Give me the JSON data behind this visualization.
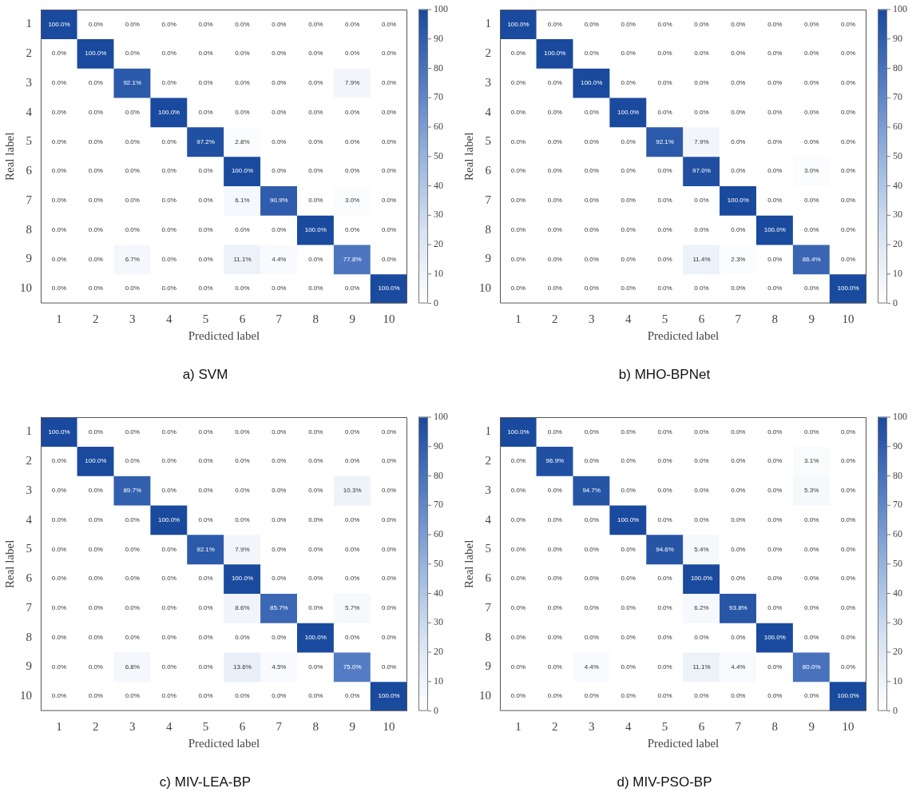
{
  "chart_data": [
    {
      "type": "heatmap",
      "title": "a) SVM",
      "xlabel": "Predicted label",
      "ylabel": "Real label",
      "categories": [
        "1",
        "2",
        "3",
        "4",
        "5",
        "6",
        "7",
        "8",
        "9",
        "10"
      ],
      "y_categories": [
        "1",
        "2",
        "3",
        "4",
        "5",
        "6",
        "7",
        "8",
        "9",
        "10"
      ],
      "clim": [
        0,
        100
      ],
      "cticks": [
        0,
        10,
        20,
        30,
        40,
        50,
        60,
        70,
        80,
        90,
        100
      ],
      "cells": [
        [
          100,
          0,
          0,
          0,
          0,
          0,
          0,
          0,
          0,
          0
        ],
        [
          0,
          100,
          0,
          0,
          0,
          0,
          0,
          0,
          0,
          0
        ],
        [
          0,
          0,
          92.1,
          0,
          0,
          0,
          0,
          0,
          7.9,
          0
        ],
        [
          0,
          0,
          0,
          100,
          0,
          0,
          0,
          0,
          0,
          0
        ],
        [
          0,
          0,
          0,
          0,
          97.2,
          2.8,
          0,
          0,
          0,
          0
        ],
        [
          0,
          0,
          0,
          0,
          0,
          100,
          0,
          0,
          0,
          0
        ],
        [
          0,
          0,
          0,
          0,
          0,
          6.1,
          90.9,
          0,
          3.0,
          0
        ],
        [
          0,
          0,
          0,
          0,
          0,
          0,
          0,
          100,
          0,
          0
        ],
        [
          0,
          0,
          6.7,
          0,
          0,
          11.1,
          4.4,
          0,
          77.8,
          0
        ],
        [
          0,
          0,
          0,
          0,
          0,
          0,
          0,
          0,
          0,
          100
        ]
      ],
      "cell_labels": [
        [
          "100.0%",
          "0.0%",
          "0.0%",
          "0.0%",
          "0.0%",
          "0.0%",
          "0.0%",
          "0.0%",
          "0.0%",
          "0.0%"
        ],
        [
          "0.0%",
          "100.0%",
          "0.0%",
          "0.0%",
          "0.0%",
          "0.0%",
          "0.0%",
          "0.0%",
          "0.0%",
          "0.0%"
        ],
        [
          "0.0%",
          "0.0%",
          "92.1%",
          "0.0%",
          "0.0%",
          "0.0%",
          "0.0%",
          "0.0%",
          "7.9%",
          "0.0%"
        ],
        [
          "0.0%",
          "0.0%",
          "0.0%",
          "100.0%",
          "0.0%",
          "0.0%",
          "0.0%",
          "0.0%",
          "0.0%",
          "0.0%"
        ],
        [
          "0.0%",
          "0.0%",
          "0.0%",
          "0.0%",
          "97.2%",
          "2.8%",
          "0.0%",
          "0.0%",
          "0.0%",
          "0.0%"
        ],
        [
          "0.0%",
          "0.0%",
          "0.0%",
          "0.0%",
          "0.0%",
          "100.0%",
          "0.0%",
          "0.0%",
          "0.0%",
          "0.0%"
        ],
        [
          "0.0%",
          "0.0%",
          "0.0%",
          "0.0%",
          "0.0%",
          "6.1%",
          "90.9%",
          "0.0%",
          "3.0%",
          "0.0%"
        ],
        [
          "0.0%",
          "0.0%",
          "0.0%",
          "0.0%",
          "0.0%",
          "0.0%",
          "0.0%",
          "100.0%",
          "0.0%",
          "0.0%"
        ],
        [
          "0.0%",
          "0.0%",
          "6.7%",
          "0.0%",
          "0.0%",
          "11.1%",
          "4.4%",
          "0.0%",
          "77.8%",
          "0.0%"
        ],
        [
          "0.0%",
          "0.0%",
          "0.0%",
          "0.0%",
          "0.0%",
          "0.0%",
          "0.0%",
          "0.0%",
          "0.0%",
          "100.0%"
        ]
      ]
    },
    {
      "type": "heatmap",
      "title": "b) MHO-BPNet",
      "xlabel": "Predicted label",
      "ylabel": "Real label",
      "categories": [
        "1",
        "2",
        "3",
        "4",
        "5",
        "6",
        "7",
        "8",
        "9",
        "10"
      ],
      "y_categories": [
        "1",
        "2",
        "3",
        "4",
        "5",
        "6",
        "7",
        "8",
        "9",
        "10"
      ],
      "clim": [
        0,
        100
      ],
      "cticks": [
        0,
        10,
        20,
        30,
        40,
        50,
        60,
        70,
        80,
        90,
        100
      ],
      "cells": [
        [
          100,
          0,
          0,
          0,
          0,
          0,
          0,
          0,
          0,
          0
        ],
        [
          0,
          100,
          0,
          0,
          0,
          0,
          0,
          0,
          0,
          0
        ],
        [
          0,
          0,
          100,
          0,
          0,
          0,
          0,
          0,
          0,
          0
        ],
        [
          0,
          0,
          0,
          100,
          0,
          0,
          0,
          0,
          0,
          0
        ],
        [
          0,
          0,
          0,
          0,
          92.1,
          7.9,
          0,
          0,
          0,
          0
        ],
        [
          0,
          0,
          0,
          0,
          0,
          97.0,
          0,
          0,
          3.0,
          0
        ],
        [
          0,
          0,
          0,
          0,
          0,
          0,
          100,
          0,
          0,
          0
        ],
        [
          0,
          0,
          0,
          0,
          0,
          0,
          0,
          100,
          0,
          0
        ],
        [
          0,
          0,
          0,
          0,
          0,
          11.4,
          2.3,
          0,
          86.4,
          0
        ],
        [
          0,
          0,
          0,
          0,
          0,
          0,
          0,
          0,
          0,
          100
        ]
      ],
      "cell_labels": [
        [
          "100.0%",
          "0.0%",
          "0.0%",
          "0.0%",
          "0.0%",
          "0.0%",
          "0.0%",
          "0.0%",
          "0.0%",
          "0.0%"
        ],
        [
          "0.0%",
          "100.0%",
          "0.0%",
          "0.0%",
          "0.0%",
          "0.0%",
          "0.0%",
          "0.0%",
          "0.0%",
          "0.0%"
        ],
        [
          "0.0%",
          "0.0%",
          "100.0%",
          "0.0%",
          "0.0%",
          "0.0%",
          "0.0%",
          "0.0%",
          "0.0%",
          "0.0%"
        ],
        [
          "0.0%",
          "0.0%",
          "0.0%",
          "100.0%",
          "0.0%",
          "0.0%",
          "0.0%",
          "0.0%",
          "0.0%",
          "0.0%"
        ],
        [
          "0.0%",
          "0.0%",
          "0.0%",
          "0.0%",
          "92.1%",
          "7.9%",
          "0.0%",
          "0.0%",
          "0.0%",
          "0.0%"
        ],
        [
          "0.0%",
          "0.0%",
          "0.0%",
          "0.0%",
          "0.0%",
          "97.0%",
          "0.0%",
          "0.0%",
          "3.0%",
          "0.0%"
        ],
        [
          "0.0%",
          "0.0%",
          "0.0%",
          "0.0%",
          "0.0%",
          "0.0%",
          "100.0%",
          "0.0%",
          "0.0%",
          "0.0%"
        ],
        [
          "0.0%",
          "0.0%",
          "0.0%",
          "0.0%",
          "0.0%",
          "0.0%",
          "0.0%",
          "100.0%",
          "0.0%",
          "0.0%"
        ],
        [
          "0.0%",
          "0.0%",
          "0.0%",
          "0.0%",
          "0.0%",
          "11.4%",
          "2.3%",
          "0.0%",
          "86.4%",
          "0.0%"
        ],
        [
          "0.0%",
          "0.0%",
          "0.0%",
          "0.0%",
          "0.0%",
          "0.0%",
          "0.0%",
          "0.0%",
          "0.0%",
          "100.0%"
        ]
      ]
    },
    {
      "type": "heatmap",
      "title": "c) MIV-LEA-BP",
      "xlabel": "Predicted label",
      "ylabel": "Real label",
      "categories": [
        "1",
        "2",
        "3",
        "4",
        "5",
        "6",
        "7",
        "8",
        "9",
        "10"
      ],
      "y_categories": [
        "1",
        "2",
        "3",
        "4",
        "5",
        "6",
        "7",
        "8",
        "9",
        "10"
      ],
      "clim": [
        0,
        100
      ],
      "cticks": [
        0,
        10,
        20,
        30,
        40,
        50,
        60,
        70,
        80,
        90,
        100
      ],
      "cells": [
        [
          100,
          0,
          0,
          0,
          0,
          0,
          0,
          0,
          0,
          0
        ],
        [
          0,
          100,
          0,
          0,
          0,
          0,
          0,
          0,
          0,
          0
        ],
        [
          0,
          0,
          89.7,
          0,
          0,
          0,
          0,
          0,
          10.3,
          0
        ],
        [
          0,
          0,
          0,
          100,
          0,
          0,
          0,
          0,
          0,
          0
        ],
        [
          0,
          0,
          0,
          0,
          92.1,
          7.9,
          0,
          0,
          0,
          0
        ],
        [
          0,
          0,
          0,
          0,
          0,
          100,
          0,
          0,
          0,
          0
        ],
        [
          0,
          0,
          0,
          0,
          0,
          8.6,
          85.7,
          0,
          5.7,
          0
        ],
        [
          0,
          0,
          0,
          0,
          0,
          0,
          0,
          100,
          0,
          0
        ],
        [
          0,
          0,
          6.8,
          0,
          0,
          13.6,
          4.5,
          0,
          75.0,
          0
        ],
        [
          0,
          0,
          0,
          0,
          0,
          0,
          0,
          0,
          0,
          100
        ]
      ],
      "cell_labels": [
        [
          "100.0%",
          "0.0%",
          "0.0%",
          "0.0%",
          "0.0%",
          "0.0%",
          "0.0%",
          "0.0%",
          "0.0%",
          "0.0%"
        ],
        [
          "0.0%",
          "100.0%",
          "0.0%",
          "0.0%",
          "0.0%",
          "0.0%",
          "0.0%",
          "0.0%",
          "0.0%",
          "0.0%"
        ],
        [
          "0.0%",
          "0.0%",
          "89.7%",
          "0.0%",
          "0.0%",
          "0.0%",
          "0.0%",
          "0.0%",
          "10.3%",
          "0.0%"
        ],
        [
          "0.0%",
          "0.0%",
          "0.0%",
          "100.0%",
          "0.0%",
          "0.0%",
          "0.0%",
          "0.0%",
          "0.0%",
          "0.0%"
        ],
        [
          "0.0%",
          "0.0%",
          "0.0%",
          "0.0%",
          "92.1%",
          "7.9%",
          "0.0%",
          "0.0%",
          "0.0%",
          "0.0%"
        ],
        [
          "0.0%",
          "0.0%",
          "0.0%",
          "0.0%",
          "0.0%",
          "100.0%",
          "0.0%",
          "0.0%",
          "0.0%",
          "0.0%"
        ],
        [
          "0.0%",
          "0.0%",
          "0.0%",
          "0.0%",
          "0.0%",
          "8.6%",
          "85.7%",
          "0.0%",
          "5.7%",
          "0.0%"
        ],
        [
          "0.0%",
          "0.0%",
          "0.0%",
          "0.0%",
          "0.0%",
          "0.0%",
          "0.0%",
          "100.0%",
          "0.0%",
          "0.0%"
        ],
        [
          "0.0%",
          "0.0%",
          "6.8%",
          "0.0%",
          "0.0%",
          "13.6%",
          "4.5%",
          "0.0%",
          "75.0%",
          "0.0%"
        ],
        [
          "0.0%",
          "0.0%",
          "0.0%",
          "0.0%",
          "0.0%",
          "0.0%",
          "0.0%",
          "0.0%",
          "0.0%",
          "100.0%"
        ]
      ]
    },
    {
      "type": "heatmap",
      "title": "d) MIV-PSO-BP",
      "xlabel": "Predicted label",
      "ylabel": "Real label",
      "categories": [
        "1",
        "2",
        "3",
        "4",
        "5",
        "6",
        "7",
        "8",
        "9",
        "10"
      ],
      "y_categories": [
        "1",
        "2",
        "3",
        "4",
        "5",
        "6",
        "7",
        "8",
        "9",
        "10"
      ],
      "clim": [
        0,
        100
      ],
      "cticks": [
        0,
        10,
        20,
        30,
        40,
        50,
        60,
        70,
        80,
        90,
        100
      ],
      "cells": [
        [
          100,
          0,
          0,
          0,
          0,
          0,
          0,
          0,
          0,
          0
        ],
        [
          0,
          96.9,
          0,
          0,
          0,
          0,
          0,
          0,
          3.1,
          0
        ],
        [
          0,
          0,
          94.7,
          0,
          0,
          0,
          0,
          0,
          5.3,
          0
        ],
        [
          0,
          0,
          0,
          100,
          0,
          0,
          0,
          0,
          0,
          0
        ],
        [
          0,
          0,
          0,
          0,
          94.6,
          5.4,
          0,
          0,
          0,
          0
        ],
        [
          0,
          0,
          0,
          0,
          0,
          100,
          0,
          0,
          0,
          0
        ],
        [
          0,
          0,
          0,
          0,
          0,
          6.2,
          93.8,
          0,
          0,
          0
        ],
        [
          0,
          0,
          0,
          0,
          0,
          0,
          0,
          100,
          0,
          0
        ],
        [
          0,
          0,
          4.4,
          0,
          0,
          11.1,
          4.4,
          0,
          80.0,
          0
        ],
        [
          0,
          0,
          0,
          0,
          0,
          0,
          0,
          0,
          0,
          100
        ]
      ],
      "cell_labels": [
        [
          "100.0%",
          "0.0%",
          "0.0%",
          "0.0%",
          "0.0%",
          "0.0%",
          "0.0%",
          "0.0%",
          "0.0%",
          "0.0%"
        ],
        [
          "0.0%",
          "96.9%",
          "0.0%",
          "0.0%",
          "0.0%",
          "0.0%",
          "0.0%",
          "0.0%",
          "3.1%",
          "0.0%"
        ],
        [
          "0.0%",
          "0.0%",
          "94.7%",
          "0.0%",
          "0.0%",
          "0.0%",
          "0.0%",
          "0.0%",
          "5.3%",
          "0.0%"
        ],
        [
          "0.0%",
          "0.0%",
          "0.0%",
          "100.0%",
          "0.0%",
          "0.0%",
          "0.0%",
          "0.0%",
          "0.0%",
          "0.0%"
        ],
        [
          "0.0%",
          "0.0%",
          "0.0%",
          "0.0%",
          "94.6%",
          "5.4%",
          "0.0%",
          "0.0%",
          "0.0%",
          "0.0%"
        ],
        [
          "0.0%",
          "0.0%",
          "0.0%",
          "0.0%",
          "0.0%",
          "100.0%",
          "0.0%",
          "0.0%",
          "0.0%",
          "0.0%"
        ],
        [
          "0.0%",
          "0.0%",
          "0.0%",
          "0.0%",
          "0.0%",
          "6.2%",
          "93.8%",
          "0.0%",
          "0.0%",
          "0.0%"
        ],
        [
          "0.0%",
          "0.0%",
          "0.0%",
          "0.0%",
          "0.0%",
          "0.0%",
          "0.0%",
          "100.0%",
          "0.0%",
          "0.0%"
        ],
        [
          "0.0%",
          "0.0%",
          "4.4%",
          "0.0%",
          "0.0%",
          "11.1%",
          "4.4%",
          "0.0%",
          "80.0%",
          "0.0%"
        ],
        [
          "0.0%",
          "0.0%",
          "0.0%",
          "0.0%",
          "0.0%",
          "0.0%",
          "0.0%",
          "0.0%",
          "0.0%",
          "100.0%"
        ]
      ]
    }
  ]
}
